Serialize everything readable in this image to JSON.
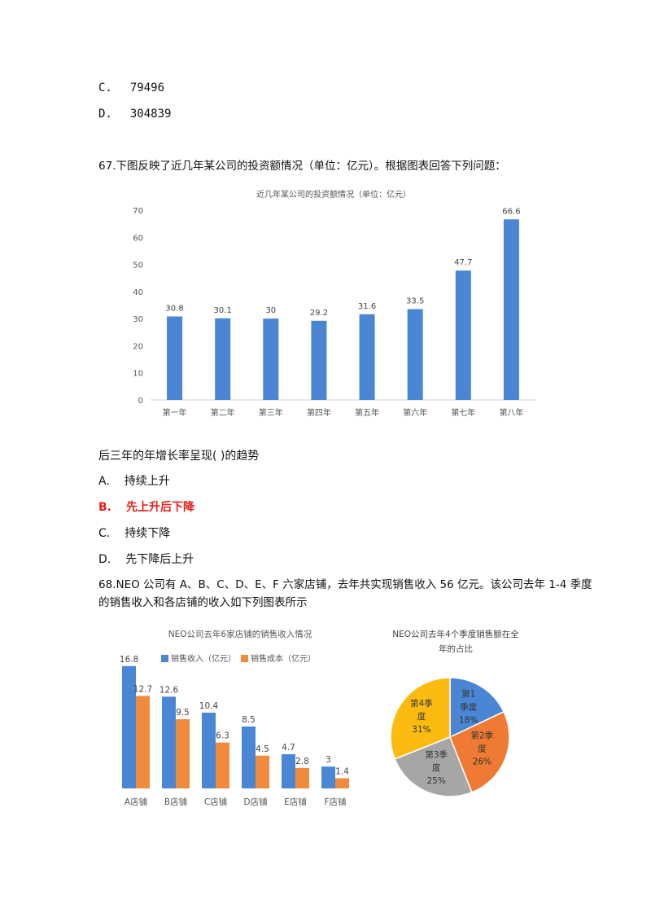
{
  "q66": {
    "options": [
      {
        "letter": "C.",
        "text": "79496"
      },
      {
        "letter": "D.",
        "text": "304839"
      }
    ]
  },
  "q67": {
    "stem": "67.下图反映了近几年某公司的投资额情况（单位：亿元）。根据图表回答下列问题：",
    "question": "后三年的年增长率呈现(    )的趋势",
    "options": [
      {
        "letter": "A.",
        "text": "持续上升",
        "correct": false
      },
      {
        "letter": "B.",
        "text": "先上升后下降",
        "correct": true
      },
      {
        "letter": "C.",
        "text": "持续下降",
        "correct": false
      },
      {
        "letter": "D.",
        "text": "先下降后上升",
        "correct": false
      }
    ]
  },
  "q68": {
    "stem_line1": "68.NEO 公司有 A、B、C、D、E、F 六家店铺，去年共实现销售收入 56 亿元。该公司去年 1-4 季度",
    "stem_line2": "的销售收入和各店铺的收入如下列图表所示"
  },
  "colors": {
    "blue": "#4a86d4",
    "orange": "#f08a3c",
    "yellow": "#fbbb10",
    "gray": "#a6a6a6",
    "pie_orange": "#ee7a33",
    "correct_red": "#e8201c"
  },
  "chart_data": [
    {
      "type": "bar",
      "title": "近几年某公司的投资额情况（单位：亿元）",
      "categories": [
        "第一年",
        "第二年",
        "第三年",
        "第四年",
        "第五年",
        "第六年",
        "第七年",
        "第八年"
      ],
      "values": [
        30.8,
        30.1,
        30,
        29.2,
        31.6,
        33.5,
        47.7,
        66.6
      ],
      "value_labels": [
        "30.8",
        "30.1",
        "30",
        "29.2",
        "31.6",
        "33.5",
        "47.7",
        "66.6"
      ],
      "ylim": [
        0,
        70
      ],
      "yticks": [
        "0",
        "10",
        "20",
        "30",
        "40",
        "50",
        "60",
        "70"
      ],
      "grid": false,
      "legend": "none"
    },
    {
      "type": "bar",
      "title": "NEO公司去年6家店铺的销售收入情况",
      "categories": [
        "A店铺",
        "B店铺",
        "C店铺",
        "D店铺",
        "E店铺",
        "F店铺"
      ],
      "series": [
        {
          "name": "销售收入（亿元）",
          "values": [
            16.8,
            12.6,
            10.4,
            8.5,
            4.7,
            3
          ],
          "labels": [
            "16.8",
            "12.6",
            "10.4",
            "8.5",
            "4.7",
            "3"
          ]
        },
        {
          "name": "销售成本（亿元）",
          "values": [
            12.7,
            9.5,
            6.3,
            4.5,
            2.8,
            1.4
          ],
          "labels": [
            "12.7",
            "9.5",
            "6.3",
            "4.5",
            "2.8",
            "1.4"
          ]
        }
      ],
      "ylim": [
        0,
        17
      ],
      "legend": "top"
    },
    {
      "type": "pie",
      "title_line1": "NEO公司去年4个季度销售额在全",
      "title_line2": "年的占比",
      "slices": [
        {
          "label_line1": "第1",
          "label_line2": "季度",
          "label_line3": "18%",
          "value": 18
        },
        {
          "label_line1": "第2季",
          "label_line2": "度",
          "label_line3": "26%",
          "value": 26
        },
        {
          "label_line1": "第3季",
          "label_line2": "度",
          "label_line3": "25%",
          "value": 25
        },
        {
          "label_line1": "第4季",
          "label_line2": "度",
          "label_line3": "31%",
          "value": 31
        }
      ],
      "start": "top, clockwise"
    }
  ]
}
